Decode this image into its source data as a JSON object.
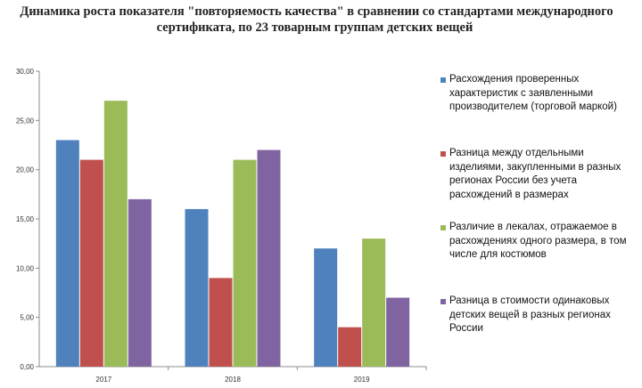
{
  "title": {
    "line1": "Динамика роста показателя \"повторяемость качества\" в сравнении со стандартами международного",
    "line2": "сертификата, по 23 товарным группам детских вещей"
  },
  "chart_data": {
    "type": "bar",
    "title": "Динамика роста показателя \"повторяемость качества\" в сравнении со стандартами международного сертификата, по 23 товарным группам детских вещей",
    "categories": [
      "2017",
      "2018",
      "2019"
    ],
    "series": [
      {
        "name": "Расхождения проверенных характеристик с заявленными производителем (торговой маркой)",
        "color": "#4F81BD",
        "values": [
          23,
          16,
          12
        ]
      },
      {
        "name": "Разница между отдельными изделиями, закупленными в разных регионах России без учета расхождений в размерах",
        "color": "#C0504D",
        "values": [
          21,
          9,
          4
        ]
      },
      {
        "name": "Различие в лекалах, отражаемое в расхождениях одного размера, в том числе для костюмов",
        "color": "#9BBB59",
        "values": [
          27,
          21,
          13
        ]
      },
      {
        "name": "Разница в стоимости одинаковых детских вещей в разных регионах России",
        "color": "#8064A2",
        "values": [
          17,
          22,
          7
        ]
      }
    ],
    "y_ticks": [
      "0,00",
      "5,00",
      "10,00",
      "15,00",
      "20,00",
      "25,00",
      "30,00"
    ],
    "ylim": [
      0,
      30
    ],
    "xlabel": "",
    "ylabel": "",
    "grid": false,
    "legend_position": "right"
  }
}
